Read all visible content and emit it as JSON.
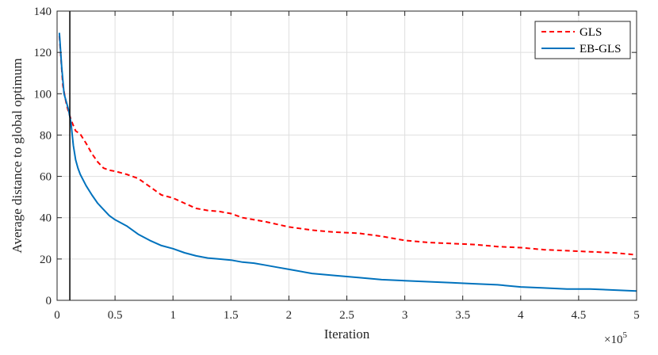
{
  "chart_data": {
    "type": "line",
    "title": "",
    "xlabel": "Iteration",
    "ylabel": "Average distance to global optimum",
    "x_multiplier_base": "×10",
    "x_multiplier_exp": "5",
    "xlim": [
      0,
      5
    ],
    "ylim": [
      0,
      140
    ],
    "xticks": [
      0,
      0.5,
      1,
      1.5,
      2,
      2.5,
      3,
      3.5,
      4,
      4.5,
      5
    ],
    "xtick_labels": [
      "0",
      "0.5",
      "1",
      "1.5",
      "2",
      "2.5",
      "3",
      "3.5",
      "4",
      "4.5",
      "5"
    ],
    "yticks": [
      0,
      20,
      40,
      60,
      80,
      100,
      120,
      140
    ],
    "ytick_labels": [
      "0",
      "20",
      "40",
      "60",
      "80",
      "100",
      "120",
      "140"
    ],
    "grid": true,
    "legend_position": "top-right",
    "vline_x": 0.11,
    "series": [
      {
        "name": "GLS",
        "color": "#ff0000",
        "dash": "dashed",
        "x": [
          0.02,
          0.05,
          0.08,
          0.1,
          0.13,
          0.16,
          0.2,
          0.25,
          0.3,
          0.35,
          0.4,
          0.45,
          0.5,
          0.6,
          0.7,
          0.8,
          0.9,
          1.0,
          1.1,
          1.2,
          1.3,
          1.4,
          1.5,
          1.6,
          1.8,
          2.0,
          2.2,
          2.4,
          2.6,
          2.8,
          3.0,
          3.2,
          3.4,
          3.6,
          3.8,
          4.0,
          4.2,
          4.4,
          4.6,
          4.8,
          5.0
        ],
        "y": [
          128,
          104,
          95,
          91,
          86,
          82,
          80.5,
          76,
          71,
          67,
          64,
          63,
          62.5,
          61,
          59,
          55,
          51,
          49.5,
          47,
          44.5,
          43.5,
          43,
          42,
          40,
          38,
          35.5,
          34,
          33,
          32.5,
          31,
          29,
          28,
          27.5,
          27,
          26,
          25.5,
          24.5,
          24,
          23.5,
          23,
          22
        ]
      },
      {
        "name": "EB-GLS",
        "color": "#0072bd",
        "dash": "solid",
        "x": [
          0.02,
          0.04,
          0.06,
          0.08,
          0.1,
          0.12,
          0.14,
          0.16,
          0.18,
          0.2,
          0.25,
          0.3,
          0.35,
          0.4,
          0.45,
          0.5,
          0.6,
          0.7,
          0.8,
          0.9,
          1.0,
          1.1,
          1.2,
          1.3,
          1.4,
          1.5,
          1.6,
          1.7,
          1.8,
          1.9,
          2.0,
          2.2,
          2.4,
          2.6,
          2.8,
          3.0,
          3.2,
          3.4,
          3.6,
          3.8,
          4.0,
          4.2,
          4.4,
          4.6,
          4.8,
          5.0
        ],
        "y": [
          129.5,
          113,
          100,
          96,
          92,
          86,
          75,
          68,
          64,
          61,
          55.5,
          51,
          47,
          44,
          41,
          39,
          36,
          32,
          29,
          26.5,
          25,
          23,
          21.5,
          20.5,
          20,
          19.5,
          18.5,
          18,
          17,
          16,
          15,
          13,
          12,
          11,
          10,
          9.5,
          9,
          8.5,
          8,
          7.5,
          6.5,
          6,
          5.5,
          5.5,
          5,
          4.5
        ]
      }
    ]
  }
}
